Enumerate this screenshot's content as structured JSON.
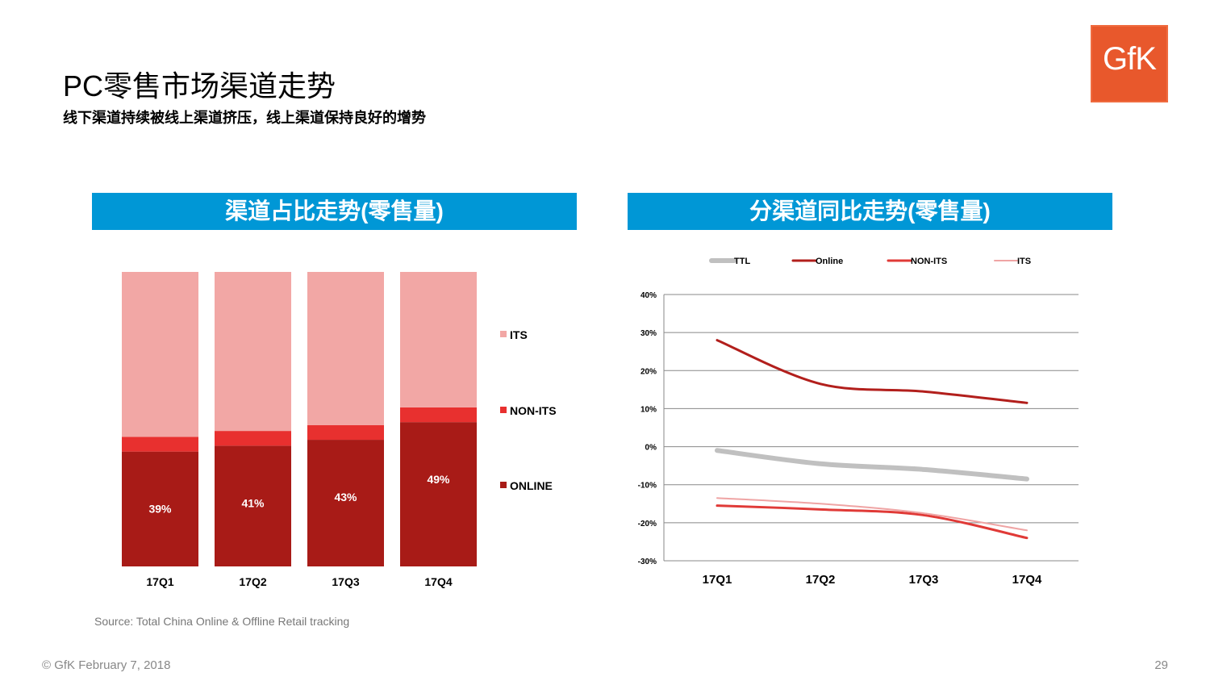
{
  "header": {
    "title": "PC零售市场渠道走势",
    "subtitle": "线下渠道持续被线上渠道挤压，线上渠道保持良好的增势",
    "logo": "GfK"
  },
  "colors": {
    "banner": "#0097d6",
    "its": "#f2a7a5",
    "non_its": "#e8302f",
    "online": "#a81b17",
    "ttl": "#c0c0c0",
    "online_line": "#b21f1c",
    "non_its_line": "#e03a37",
    "its_line": "#efa4a4"
  },
  "chart_data": [
    {
      "type": "bar",
      "stacked": true,
      "title": "渠道占比走势(零售量)",
      "categories": [
        "17Q1",
        "17Q2",
        "17Q3",
        "17Q4"
      ],
      "series": [
        {
          "name": "ONLINE",
          "values": [
            39,
            41,
            43,
            49
          ],
          "labels": [
            "39%",
            "41%",
            "43%",
            "49%"
          ]
        },
        {
          "name": "NON-ITS",
          "values": [
            5,
            5,
            5,
            5
          ]
        },
        {
          "name": "ITS",
          "values": [
            56,
            54,
            52,
            46
          ]
        }
      ],
      "legend": [
        "ITS",
        "NON-ITS",
        "ONLINE"
      ],
      "legend_position": "right",
      "ylim": [
        0,
        100
      ]
    },
    {
      "type": "line",
      "title": "分渠道同比走势(零售量)",
      "categories": [
        "17Q1",
        "17Q2",
        "17Q3",
        "17Q4"
      ],
      "series": [
        {
          "name": "TTL",
          "values": [
            -1,
            -4.5,
            -6,
            -8.5
          ]
        },
        {
          "name": "Online",
          "values": [
            28,
            16.5,
            14.5,
            11.5
          ]
        },
        {
          "name": "NON-ITS",
          "values": [
            -15.5,
            -16.5,
            -18,
            -24
          ]
        },
        {
          "name": "ITS",
          "values": [
            -13.5,
            -15,
            -17.5,
            -22
          ]
        }
      ],
      "yticks": [
        "40%",
        "30%",
        "20%",
        "10%",
        "0%",
        "-10%",
        "-20%",
        "-30%"
      ],
      "ylim": [
        -30,
        40
      ],
      "grid": true,
      "legend_position": "top"
    }
  ],
  "source": "Source: Total China Online & Offline Retail tracking",
  "footer": "© GfK February 7, 2018",
  "page_number": "29"
}
